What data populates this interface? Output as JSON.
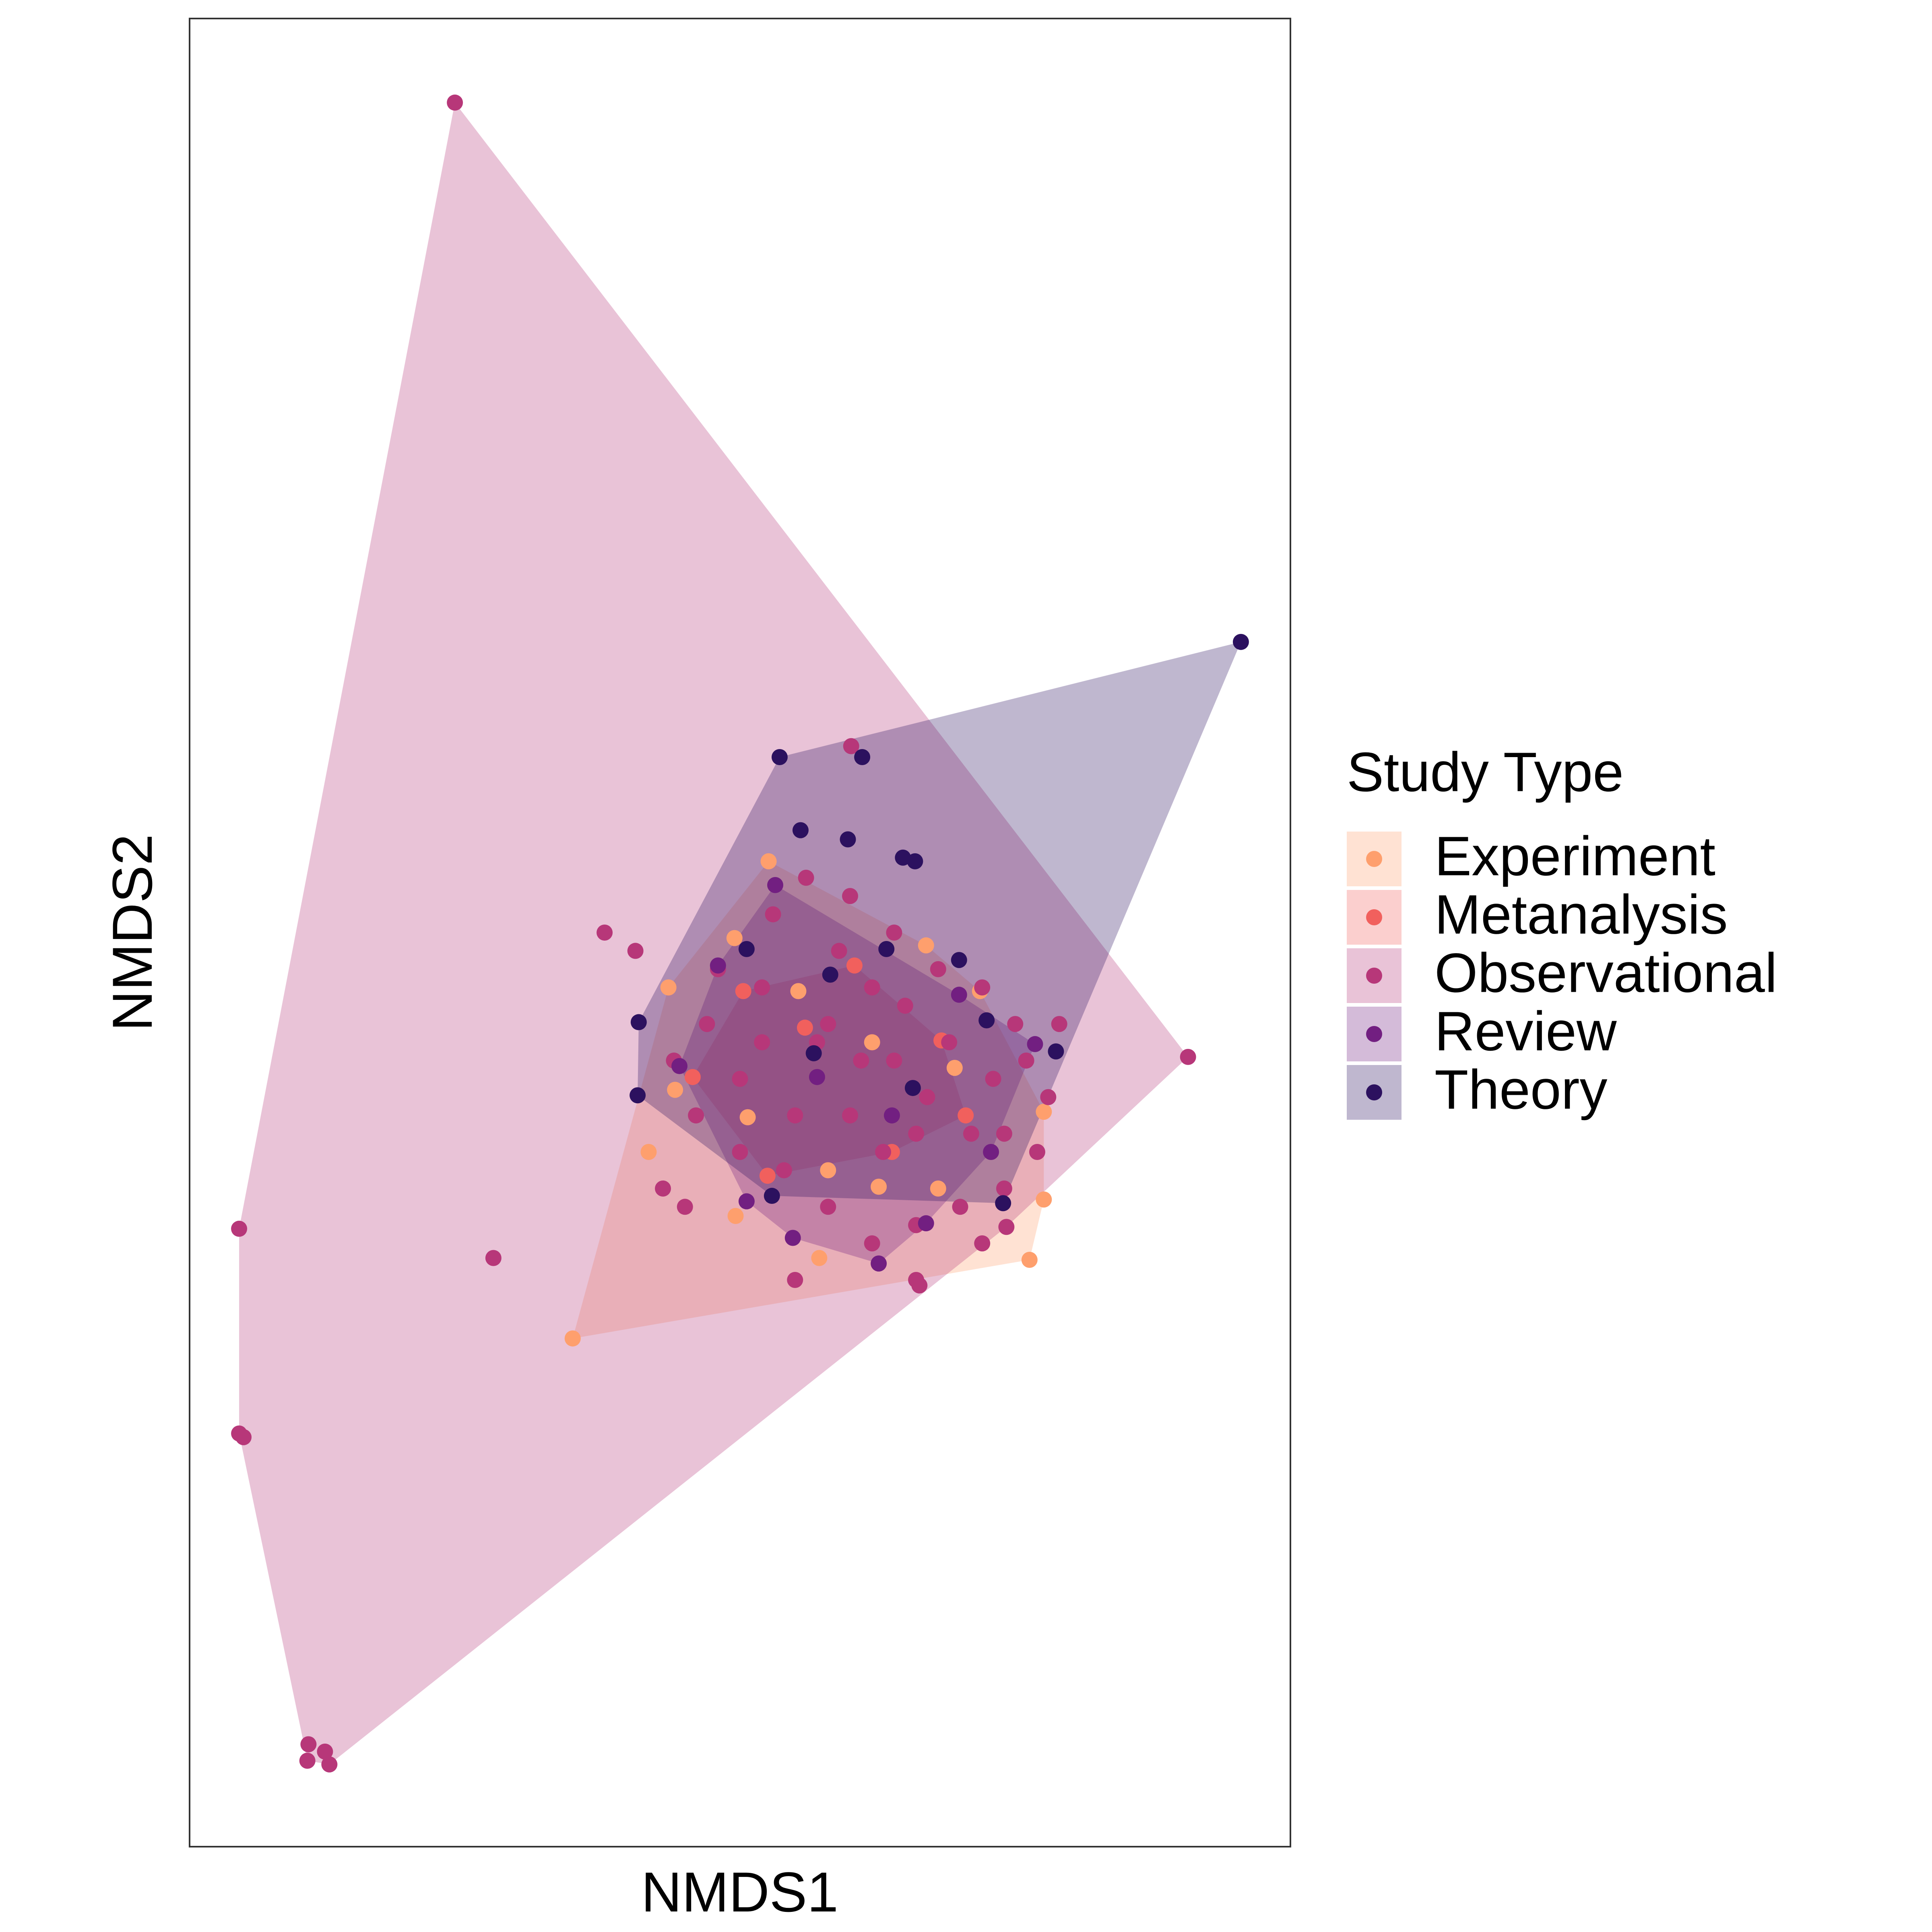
{
  "chart_data": {
    "type": "scatter",
    "x_label": "NMDS1",
    "y_label": "NMDS2",
    "legend_title": "Study Type",
    "legend": "right",
    "xlim": [
      0,
      1
    ],
    "ylim": [
      0,
      1
    ],
    "grid": false,
    "hulls": true,
    "series": [
      {
        "name": "Experiment",
        "color": "#fe9f6d",
        "x": [
          0.348,
          0.763,
          0.776,
          0.776,
          0.526,
          0.669,
          0.435,
          0.417,
          0.496,
          0.572,
          0.553,
          0.695,
          0.507,
          0.441,
          0.718,
          0.626,
          0.495,
          0.58,
          0.62,
          0.68
        ],
        "values": [
          0.278,
          0.321,
          0.354,
          0.402,
          0.539,
          0.493,
          0.47,
          0.38,
          0.345,
          0.322,
          0.468,
          0.426,
          0.399,
          0.414,
          0.468,
          0.361,
          0.497,
          0.37,
          0.44,
          0.36
        ]
      },
      {
        "name": "Metanalysis",
        "color": "#f1605d",
        "x": [
          0.457,
          0.604,
          0.683,
          0.638,
          0.525,
          0.559,
          0.705,
          0.503
        ],
        "values": [
          0.421,
          0.482,
          0.441,
          0.38,
          0.367,
          0.448,
          0.4,
          0.468
        ]
      },
      {
        "name": "Observational",
        "color": "#b73779",
        "x": [
          0.241,
          0.907,
          0.127,
          0.107,
          0.108,
          0.123,
          0.045,
          0.049,
          0.045,
          0.276,
          0.601,
          0.377,
          0.405,
          0.663,
          0.742,
          0.47,
          0.5,
          0.52,
          0.55,
          0.57,
          0.59,
          0.61,
          0.63,
          0.65,
          0.67,
          0.69,
          0.71,
          0.73,
          0.75,
          0.77,
          0.74,
          0.7,
          0.66,
          0.62,
          0.58,
          0.54,
          0.5,
          0.46,
          0.44,
          0.48,
          0.53,
          0.56,
          0.6,
          0.64,
          0.68,
          0.72,
          0.76,
          0.78,
          0.6,
          0.58,
          0.64,
          0.66,
          0.52,
          0.62,
          0.55,
          0.66,
          0.72,
          0.43,
          0.45,
          0.74,
          0.79
        ],
        "values": [
          0.954,
          0.432,
          0.045,
          0.047,
          0.056,
          0.052,
          0.226,
          0.224,
          0.338,
          0.322,
          0.602,
          0.5,
          0.49,
          0.307,
          0.339,
          0.45,
          0.42,
          0.47,
          0.4,
          0.44,
          0.49,
          0.43,
          0.38,
          0.46,
          0.41,
          0.44,
          0.39,
          0.42,
          0.45,
          0.38,
          0.36,
          0.35,
          0.34,
          0.33,
          0.35,
          0.37,
          0.38,
          0.4,
          0.43,
          0.48,
          0.51,
          0.53,
          0.52,
          0.5,
          0.48,
          0.47,
          0.43,
          0.41,
          0.4,
          0.45,
          0.43,
          0.39,
          0.44,
          0.47,
          0.31,
          0.31,
          0.33,
          0.36,
          0.35,
          0.39,
          0.45
        ]
      },
      {
        "name": "Review",
        "color": "#721f81",
        "x": [
          0.506,
          0.532,
          0.699,
          0.768,
          0.548,
          0.669,
          0.48,
          0.638,
          0.57,
          0.728,
          0.445,
          0.626
        ],
        "values": [
          0.353,
          0.526,
          0.466,
          0.439,
          0.333,
          0.341,
          0.482,
          0.4,
          0.421,
          0.38,
          0.427,
          0.319
        ]
      },
      {
        "name": "Theory",
        "color": "#2c115f",
        "x": [
          0.955,
          0.536,
          0.611,
          0.408,
          0.407,
          0.529,
          0.739,
          0.787,
          0.555,
          0.598,
          0.648,
          0.659,
          0.582,
          0.633,
          0.506,
          0.724,
          0.657,
          0.567,
          0.699
        ],
        "values": [
          0.659,
          0.596,
          0.596,
          0.451,
          0.411,
          0.356,
          0.352,
          0.435,
          0.556,
          0.551,
          0.541,
          0.539,
          0.477,
          0.491,
          0.491,
          0.452,
          0.415,
          0.434,
          0.485
        ]
      }
    ]
  }
}
